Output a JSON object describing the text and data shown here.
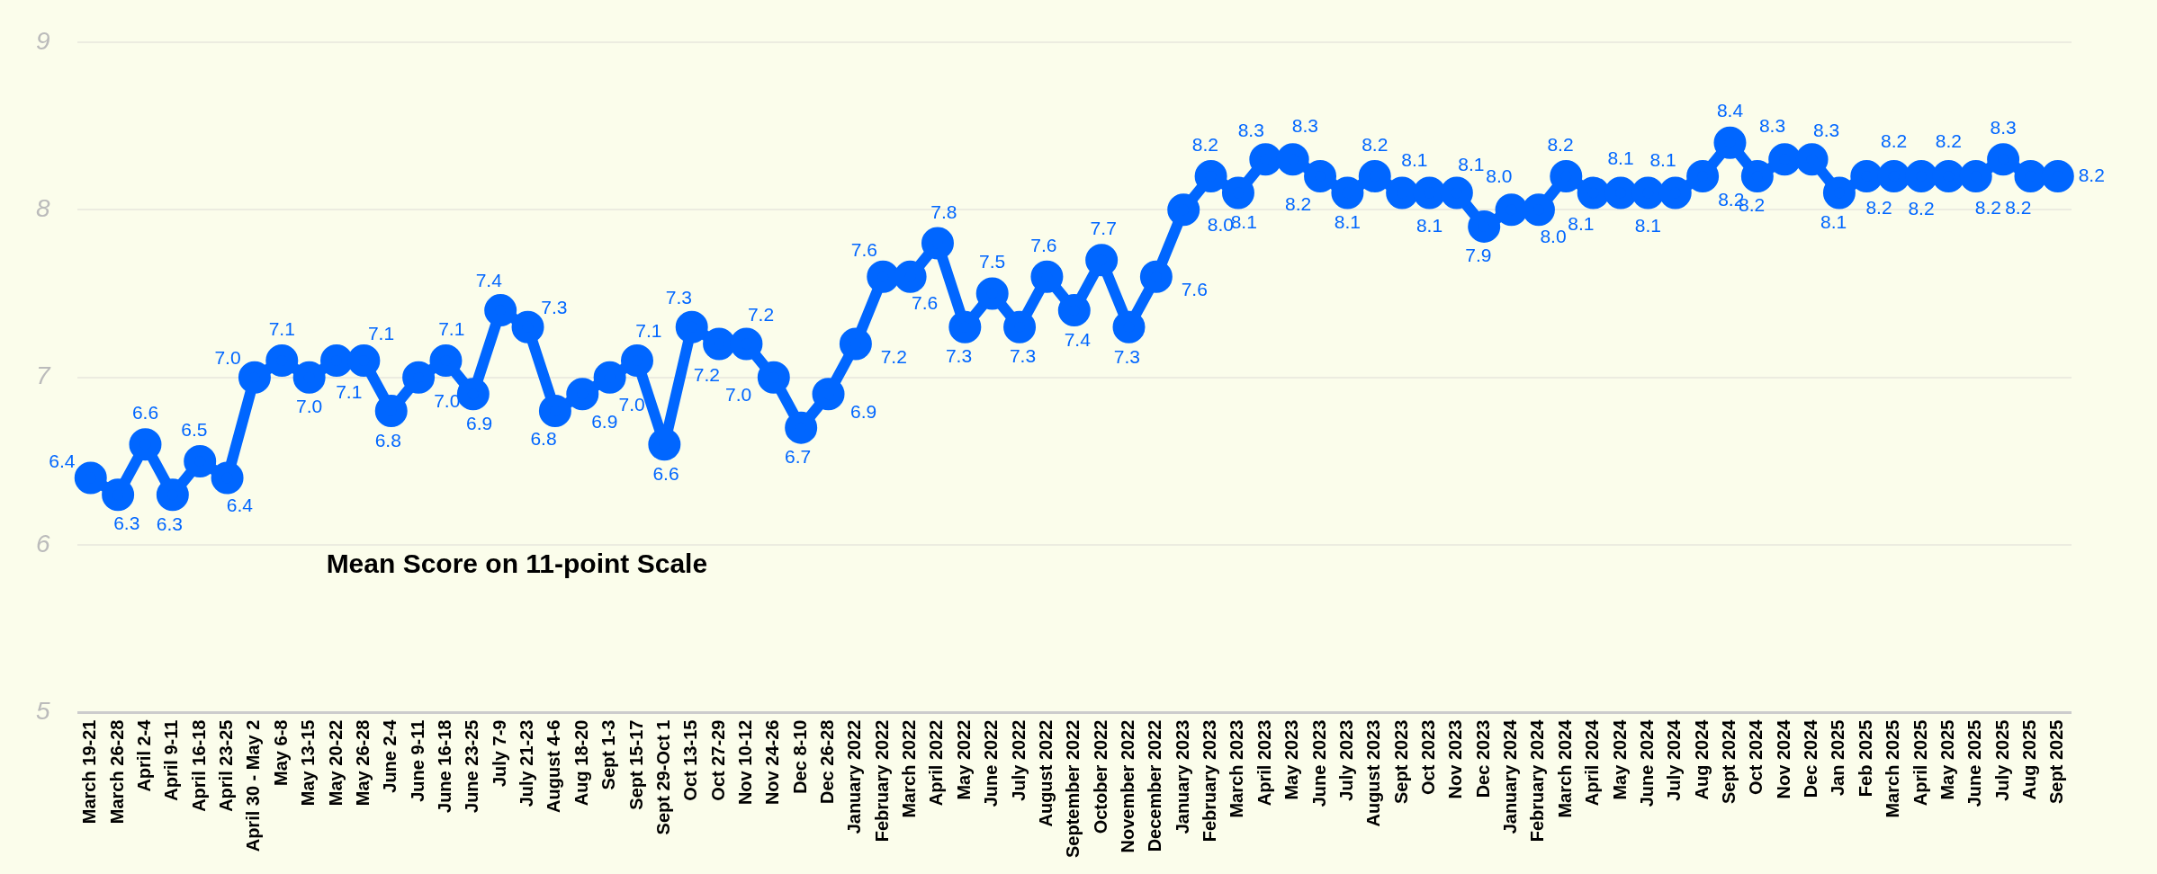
{
  "chart_data": {
    "type": "line",
    "categories": [
      "March 19-21",
      "March 26-28",
      "April 2-4",
      "April 9-11",
      "April 16-18",
      "April 23-25",
      "April 30 - May 2",
      "May 6-8",
      "May 13-15",
      "May 20-22",
      "May 26-28",
      "June 2-4",
      "June 9-11",
      "June 16-18",
      "June 23-25",
      "July 7-9",
      "July 21-23",
      "August 4-6",
      "Aug 18-20",
      "Sept 1-3",
      "Sept 15-17",
      "Sept 29-Oct 1",
      "Oct 13-15",
      "Oct 27-29",
      "Nov 10-12",
      "Nov 24-26",
      "Dec 8-10",
      "Dec 26-28",
      "January 2022",
      "February 2022",
      "March 2022",
      "April 2022",
      "May 2022",
      "June 2022",
      "July 2022",
      "August 2022",
      "September 2022",
      "October 2022",
      "November 2022",
      "December 2022",
      "January 2023",
      "February 2023",
      "March 2023",
      "April 2023",
      "May 2023",
      "June 2023",
      "July 2023",
      "August 2023",
      "Sept 2023",
      "Oct 2023",
      "Nov 2023",
      "Dec 2023",
      "January 2024",
      "February 2024",
      "March 2024",
      "April 2024",
      "May 2024",
      "June 2024",
      "July 2024",
      "Aug 2024",
      "Sept 2024",
      "Oct 2024",
      "Nov 2024",
      "Dec 2024",
      "Jan 2025",
      "Feb 2025",
      "March 2025",
      "April 2025",
      "May 2025",
      "June 2025",
      "July 2025",
      "Aug 2025",
      "Sept 2025"
    ],
    "series": [
      {
        "color": "#0066ff",
        "values": [
          6.4,
          6.3,
          6.6,
          6.3,
          6.5,
          6.4,
          7.0,
          7.1,
          7.0,
          7.1,
          7.1,
          6.8,
          7.0,
          7.1,
          6.9,
          7.4,
          7.3,
          6.8,
          6.9,
          7.0,
          7.1,
          6.6,
          7.3,
          7.2,
          7.2,
          7.0,
          6.7,
          6.9,
          7.2,
          7.6,
          7.6,
          7.8,
          7.3,
          7.5,
          7.3,
          7.6,
          7.4,
          7.7,
          7.3,
          7.6,
          8.0,
          8.2,
          8.1,
          8.3,
          8.3,
          8.2,
          8.1,
          8.2,
          8.1,
          8.1,
          8.1,
          7.9,
          8.0,
          8.0,
          8.2,
          8.1,
          8.1,
          8.1,
          8.1,
          8.2,
          8.4,
          8.2,
          8.3,
          8.3,
          8.1,
          8.2,
          8.2,
          8.2,
          8.2,
          8.2,
          8.3,
          8.2,
          8.2
        ]
      }
    ],
    "value_labels": [
      "6.4",
      "6.3",
      "6.6",
      "6.3",
      "6.5",
      "6.4",
      "7.0",
      "7.1",
      "7.0",
      "7.1",
      "7.1",
      "6.8",
      "7.0",
      "7.1",
      "6.9",
      "7.4",
      "7.3",
      "6.8",
      "6.9",
      "7.0",
      "7.1",
      "6.6",
      "7.3",
      "7.2",
      "7.2",
      "7.0",
      "6.7",
      "6.9",
      "7.2",
      "7.6",
      "7.6",
      "7.8",
      "7.3",
      "7.5",
      "7.3",
      "7.6",
      "7.4",
      "7.7",
      "7.3",
      "7.6",
      "8.0",
      "8.2",
      "8.1",
      "8.3",
      "8.3",
      "8.2",
      "8.1",
      "8.2",
      "8.1",
      "8.1",
      "8.1",
      "7.9",
      "8.0",
      "8.0",
      "8.2",
      "8.1",
      "8.1",
      "8.1",
      "8.1",
      "8.2",
      "8.4",
      "8.2",
      "8.3",
      "8.3",
      "8.1",
      "8.2",
      "8.2",
      "8.2",
      "8.2",
      "8.2",
      "8.3",
      "8.2",
      "8.2"
    ],
    "ylim": [
      5,
      9
    ],
    "yticks": [
      5,
      6,
      7,
      8,
      9
    ],
    "grid": "y",
    "legend": false,
    "marker": "circle",
    "line_style": "solid",
    "annotations": [
      "Mean Score on 11-point Scale"
    ]
  }
}
